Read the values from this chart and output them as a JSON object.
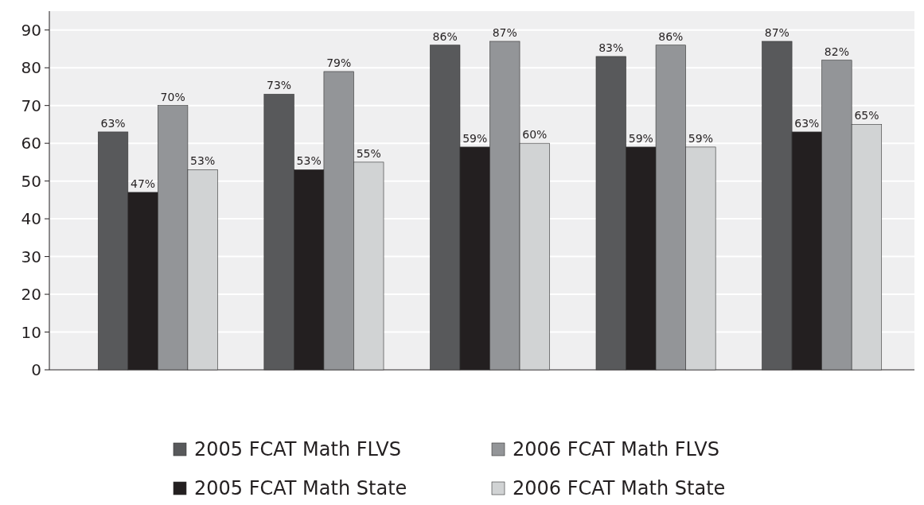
{
  "chart_data": {
    "type": "bar",
    "categories": [
      null,
      null,
      null,
      null,
      null
    ],
    "series": [
      {
        "name": "2005 FCAT Math FLVS",
        "color": "#58595b",
        "values": [
          63,
          73,
          86,
          83,
          87
        ],
        "value_labels": [
          "63%",
          "73%",
          "86%",
          "83%",
          "87%"
        ]
      },
      {
        "name": "2005 FCAT Math State",
        "color": "#231f20",
        "values": [
          47,
          53,
          59,
          59,
          63
        ],
        "value_labels": [
          "47%",
          "53%",
          "59%",
          "59%",
          "63%"
        ]
      },
      {
        "name": "2006 FCAT Math FLVS",
        "color": "#939598",
        "values": [
          70,
          79,
          87,
          86,
          82
        ],
        "value_labels": [
          "70%",
          "79%",
          "87%",
          "86%",
          "82%"
        ]
      },
      {
        "name": "2006 FCAT Math State",
        "color": "#d1d3d4",
        "values": [
          53,
          55,
          60,
          59,
          65
        ],
        "value_labels": [
          "53%",
          "55%",
          "60%",
          "59%",
          "65%"
        ]
      }
    ],
    "ylim": [
      0,
      95
    ],
    "yticks": [
      0,
      10,
      20,
      30,
      40,
      50,
      60,
      70,
      80,
      90
    ],
    "grid": "y",
    "legend": "bottom"
  }
}
